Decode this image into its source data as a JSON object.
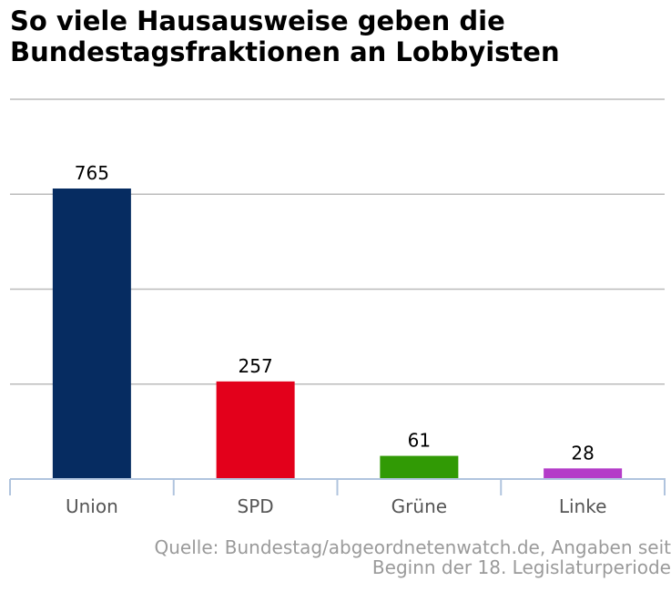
{
  "title": {
    "line1": "So viele Hausausweise geben die",
    "line2": "Bundestagsfraktionen an Lobbyisten"
  },
  "source": {
    "line1": "Quelle: Bundestag/abgeordnetenwatch.de, Angaben seit",
    "line2": "Beginn der 18. Legislaturperiode"
  },
  "chart_data": {
    "type": "bar",
    "title": "So viele Hausausweise geben die Bundestagsfraktionen an Lobbyisten",
    "xlabel": "",
    "ylabel": "",
    "categories": [
      "Union",
      "SPD",
      "Grüne",
      "Linke"
    ],
    "values": [
      765,
      257,
      61,
      28
    ],
    "colors": [
      "#062c61",
      "#e3001b",
      "#319a05",
      "#b43cc8"
    ],
    "ylim": [
      0,
      1000
    ],
    "yticks": [
      0,
      250,
      500,
      750,
      1000
    ],
    "y_tick_labels_shown": false,
    "grid": true,
    "data_labels": true,
    "gridline_color": "#bbbbbb",
    "axis_color": "#b0c4de",
    "category_label_color": "#555555"
  }
}
